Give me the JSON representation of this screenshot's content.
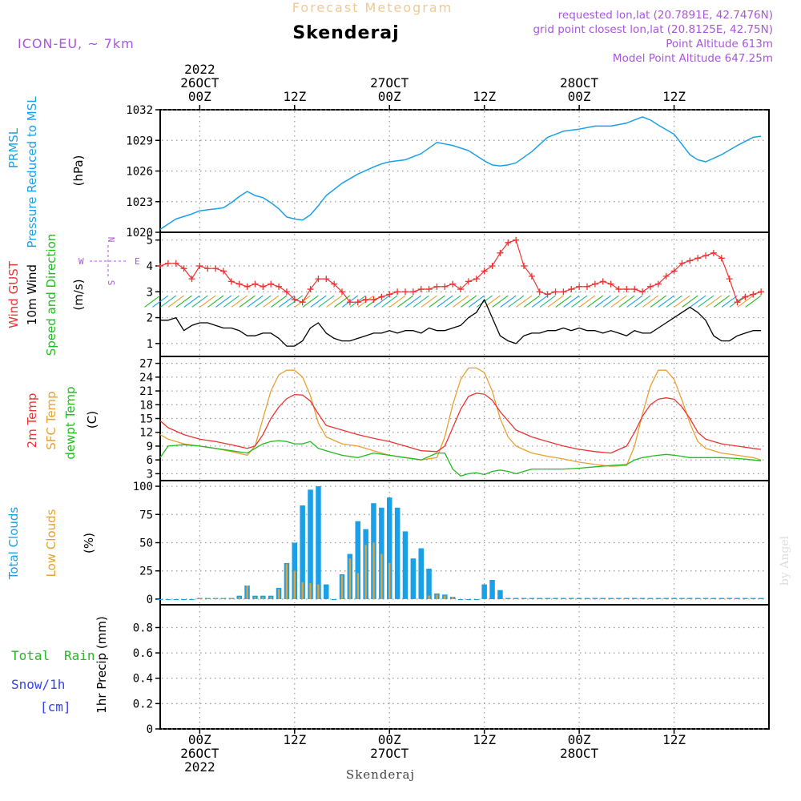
{
  "header": {
    "title": "Forecast Meteogram",
    "location": "Skenderaj",
    "model": "ICON-EU, ~ 7km",
    "requested": "requested lon,lat (20.7891E, 42.7476N)",
    "grid": "grid point closest lon,lat (20.8125E, 42.75N)",
    "point_alt": "Point Altitude 613m",
    "model_alt": "Model Point Altitude 647.25m",
    "watermark": "by Angel",
    "footer": "Skenderaj"
  },
  "time_axis": {
    "top_rows": [
      {
        "x": 0,
        "lines": [
          "2022",
          "26OCT",
          "00Z"
        ]
      },
      {
        "x": 12,
        "lines": [
          "12Z"
        ]
      },
      {
        "x": 24,
        "lines": [
          "27OCT",
          "00Z"
        ]
      },
      {
        "x": 36,
        "lines": [
          "12Z"
        ]
      },
      {
        "x": 48,
        "lines": [
          "28OCT",
          "00Z"
        ]
      },
      {
        "x": 60,
        "lines": [
          "12Z"
        ]
      }
    ],
    "bottom_rows": [
      {
        "x": 0,
        "lines": [
          "00Z",
          "26OCT",
          "2022"
        ]
      },
      {
        "x": 12,
        "lines": [
          "12Z"
        ]
      },
      {
        "x": 24,
        "lines": [
          "00Z",
          "27OCT"
        ]
      },
      {
        "x": 36,
        "lines": [
          "12Z"
        ]
      },
      {
        "x": 48,
        "lines": [
          "00Z",
          "28OCT"
        ]
      },
      {
        "x": 60,
        "lines": [
          "12Z"
        ]
      }
    ]
  },
  "panels": {
    "pressure": {
      "labels": [
        {
          "text": "PRMSL",
          "color": "#1aa0e6"
        },
        {
          "text": "Pressure Reduced to MSL",
          "color": "#1aa0e6"
        },
        {
          "text": "(hPa)",
          "color": "#000000"
        }
      ],
      "ticks": [
        "1020",
        "1023",
        "1026",
        "1029",
        "1032"
      ]
    },
    "wind": {
      "labels": [
        {
          "text": "Wind GUST",
          "color": "#ee3333"
        },
        {
          "text": "10m Wind",
          "color": "#000000"
        },
        {
          "text": "Speed and Direction",
          "color": "#22bb22"
        },
        {
          "text": "(m/s)",
          "color": "#000000"
        }
      ],
      "compass": {
        "n": "N",
        "s": "S",
        "w": "W",
        "e": "E",
        "color": "#aa55dd"
      },
      "ticks": [
        "1",
        "2",
        "3",
        "4",
        "5"
      ]
    },
    "temp": {
      "labels": [
        {
          "text": "2m Temp",
          "color": "#ee3333"
        },
        {
          "text": "SFC Temp",
          "color": "#e8a030"
        },
        {
          "text": "dewpt Temp",
          "color": "#22bb22"
        },
        {
          "text": "(C)",
          "color": "#000000"
        }
      ],
      "ticks": [
        "3",
        "6",
        "9",
        "12",
        "15",
        "18",
        "21",
        "24",
        "27"
      ]
    },
    "clouds": {
      "labels": [
        {
          "text": "Total Clouds",
          "color": "#1aa0e6"
        },
        {
          "text": "Low Clouds",
          "color": "#e8a030"
        },
        {
          "text": "(%)",
          "color": "#000000"
        }
      ],
      "ticks": [
        "0",
        "25",
        "50",
        "75",
        "100"
      ]
    },
    "precip": {
      "labels": [
        {
          "text": "Total",
          "color": "#22bb22"
        },
        {
          "text": "Rain",
          "color": "#22bb22"
        },
        {
          "text": "Snow/1h",
          "color": "#3344ee"
        },
        {
          "text": "[cm]",
          "color": "#3344ee"
        },
        {
          "text": "1hr Precip (mm)",
          "color": "#000000"
        }
      ],
      "ticks": [
        "0",
        "0.2",
        "0.4",
        "0.6",
        "0.8"
      ]
    }
  },
  "chart_data": {
    "type": "line",
    "x_unit": "hours from 2022-10-26 00Z",
    "xlim": [
      -5,
      72
    ],
    "colors": {
      "pressure": "#1aa0e6",
      "gust": "#ee3333",
      "wind": "#000000",
      "t2m": "#ee3333",
      "sfc": "#e8a030",
      "dew": "#22bb22",
      "total_cloud": "#1aa0e6",
      "low_cloud": "#e8a030"
    },
    "pressure": {
      "ylim": [
        1020,
        1032
      ],
      "x": [
        -5,
        -3,
        -1,
        0,
        1,
        2,
        3,
        4,
        5,
        6,
        7,
        8,
        9,
        10,
        11,
        12,
        13,
        14,
        15,
        16,
        18,
        20,
        22,
        23,
        24,
        26,
        28,
        30,
        32,
        34,
        36,
        37,
        38,
        39,
        40,
        42,
        44,
        46,
        48,
        50,
        51,
        52,
        54,
        56,
        57,
        58,
        60,
        62,
        63,
        64,
        66,
        68,
        70,
        71
      ],
      "values": [
        1020.3,
        1021.3,
        1021.8,
        1022.1,
        1022.2,
        1022.3,
        1022.4,
        1022.9,
        1023.5,
        1024.0,
        1023.6,
        1023.4,
        1022.9,
        1022.3,
        1021.5,
        1021.3,
        1021.2,
        1021.7,
        1022.6,
        1023.6,
        1024.8,
        1025.7,
        1026.4,
        1026.7,
        1026.9,
        1027.1,
        1027.7,
        1028.8,
        1028.5,
        1028.0,
        1027.0,
        1026.6,
        1026.5,
        1026.6,
        1026.8,
        1027.9,
        1029.3,
        1029.9,
        1030.1,
        1030.4,
        1030.4,
        1030.4,
        1030.7,
        1031.3,
        1031.0,
        1030.5,
        1029.6,
        1027.6,
        1027.1,
        1026.9,
        1027.6,
        1028.5,
        1029.3,
        1029.4
      ]
    },
    "wind_gust": {
      "ylim": [
        0.5,
        5.3
      ],
      "x": [
        -5,
        -4,
        -3,
        -2,
        -1,
        0,
        1,
        2,
        3,
        4,
        5,
        6,
        7,
        8,
        9,
        10,
        11,
        12,
        13,
        14,
        15,
        16,
        17,
        18,
        19,
        20,
        21,
        22,
        23,
        24,
        25,
        26,
        27,
        28,
        29,
        30,
        31,
        32,
        33,
        34,
        35,
        36,
        37,
        38,
        39,
        40,
        41,
        42,
        43,
        44,
        45,
        46,
        47,
        48,
        49,
        50,
        51,
        52,
        53,
        54,
        55,
        56,
        57,
        58,
        59,
        60,
        61,
        62,
        63,
        64,
        65,
        66,
        67,
        68,
        69,
        70,
        71
      ],
      "values": [
        4.0,
        4.1,
        4.1,
        3.9,
        3.5,
        4.0,
        3.9,
        3.9,
        3.8,
        3.4,
        3.3,
        3.2,
        3.3,
        3.2,
        3.3,
        3.2,
        3.0,
        2.7,
        2.6,
        3.1,
        3.5,
        3.5,
        3.3,
        3.0,
        2.6,
        2.6,
        2.7,
        2.7,
        2.8,
        2.9,
        3.0,
        3.0,
        3.0,
        3.1,
        3.1,
        3.2,
        3.2,
        3.3,
        3.1,
        3.4,
        3.5,
        3.8,
        4.0,
        4.5,
        4.9,
        5.0,
        4.0,
        3.6,
        3.0,
        2.9,
        3.0,
        3.0,
        3.1,
        3.2,
        3.2,
        3.3,
        3.4,
        3.3,
        3.1,
        3.1,
        3.1,
        3.0,
        3.2,
        3.3,
        3.6,
        3.8,
        4.1,
        4.2,
        4.3,
        4.4,
        4.5,
        4.3,
        3.5,
        2.6,
        2.8,
        2.9,
        3.0
      ]
    },
    "wind_speed": {
      "x": [
        -5,
        -4,
        -3,
        -2,
        -1,
        0,
        1,
        2,
        3,
        4,
        5,
        6,
        7,
        8,
        9,
        10,
        11,
        12,
        13,
        14,
        15,
        16,
        17,
        18,
        19,
        20,
        21,
        22,
        23,
        24,
        25,
        26,
        27,
        28,
        29,
        30,
        31,
        32,
        33,
        34,
        35,
        36,
        37,
        38,
        39,
        40,
        41,
        42,
        43,
        44,
        45,
        46,
        47,
        48,
        49,
        50,
        51,
        52,
        53,
        54,
        55,
        56,
        57,
        58,
        59,
        60,
        61,
        62,
        63,
        64,
        65,
        66,
        67,
        68,
        69,
        70,
        71
      ],
      "values": [
        1.9,
        1.9,
        2.0,
        1.5,
        1.7,
        1.8,
        1.8,
        1.7,
        1.6,
        1.6,
        1.5,
        1.3,
        1.3,
        1.4,
        1.4,
        1.2,
        0.9,
        0.9,
        1.1,
        1.6,
        1.8,
        1.4,
        1.2,
        1.1,
        1.1,
        1.2,
        1.3,
        1.4,
        1.4,
        1.5,
        1.4,
        1.5,
        1.5,
        1.4,
        1.6,
        1.5,
        1.5,
        1.6,
        1.7,
        2.0,
        2.2,
        2.7,
        2.0,
        1.3,
        1.1,
        1.0,
        1.3,
        1.4,
        1.4,
        1.5,
        1.5,
        1.6,
        1.5,
        1.6,
        1.5,
        1.5,
        1.4,
        1.5,
        1.4,
        1.3,
        1.5,
        1.4,
        1.4,
        1.6,
        1.8,
        2.0,
        2.2,
        2.4,
        2.2,
        1.9,
        1.3,
        1.1,
        1.1,
        1.3,
        1.4,
        1.5,
        1.5
      ]
    },
    "temperature": {
      "ylim": [
        1.5,
        28.5
      ],
      "x": [
        -5,
        -4,
        -2,
        0,
        2,
        4,
        6,
        7,
        8,
        9,
        10,
        11,
        12,
        13,
        14,
        15,
        16,
        18,
        20,
        22,
        24,
        26,
        28,
        30,
        31,
        32,
        33,
        34,
        35,
        36,
        37,
        38,
        39,
        40,
        42,
        44,
        46,
        48,
        50,
        52,
        54,
        55,
        56,
        57,
        58,
        59,
        60,
        61,
        62,
        63,
        64,
        66,
        68,
        70,
        71
      ],
      "t2m": [
        14.5,
        13.0,
        11.5,
        10.5,
        10.0,
        9.3,
        8.5,
        9.0,
        11.5,
        15.0,
        17.5,
        19.3,
        20.2,
        20.1,
        18.8,
        16.0,
        13.5,
        12.5,
        11.5,
        10.7,
        10.0,
        9.0,
        8.0,
        7.8,
        9.0,
        13.0,
        17.0,
        19.8,
        20.5,
        20.3,
        19.0,
        16.5,
        14.5,
        12.5,
        11.0,
        10.0,
        9.0,
        8.3,
        7.8,
        7.5,
        9.0,
        12.0,
        15.5,
        18.0,
        19.2,
        19.5,
        19.2,
        17.5,
        15.0,
        12.0,
        10.5,
        9.5,
        9.0,
        8.5,
        8.3
      ],
      "sfc": [
        11.5,
        10.5,
        9.5,
        9.0,
        8.5,
        7.8,
        7.0,
        9.0,
        15.0,
        21.0,
        24.5,
        25.5,
        25.5,
        24.0,
        20.0,
        14.0,
        11.0,
        9.5,
        9.0,
        8.0,
        7.0,
        6.5,
        6.0,
        6.5,
        11.0,
        18.0,
        23.5,
        26.0,
        26.0,
        25.0,
        21.0,
        15.0,
        11.0,
        9.0,
        7.5,
        6.8,
        6.2,
        5.5,
        5.0,
        4.6,
        4.8,
        9.0,
        16.0,
        22.0,
        25.5,
        25.5,
        23.5,
        19.0,
        14.0,
        10.0,
        8.5,
        7.5,
        7.0,
        6.5,
        6.0
      ],
      "dew": [
        6.5,
        9.0,
        9.3,
        9.0,
        8.5,
        8.0,
        7.5,
        8.5,
        9.5,
        10.0,
        10.2,
        10.0,
        9.5,
        9.5,
        10.0,
        8.5,
        8.0,
        7.0,
        6.5,
        7.5,
        7.0,
        6.5,
        6.0,
        7.5,
        7.5,
        4.0,
        2.5,
        3.0,
        3.2,
        2.8,
        3.5,
        3.8,
        3.5,
        3.0,
        4.0,
        4.0,
        4.0,
        4.2,
        4.5,
        4.8,
        5.0,
        6.0,
        6.5,
        6.8,
        7.0,
        7.2,
        7.0,
        6.8,
        6.5,
        6.5,
        6.5,
        6.5,
        6.3,
        6.0,
        5.8
      ]
    },
    "clouds": {
      "ylim": [
        -5,
        105
      ],
      "x": [
        -5,
        -4,
        -3,
        -2,
        -1,
        0,
        1,
        2,
        3,
        4,
        5,
        6,
        7,
        8,
        9,
        10,
        11,
        12,
        13,
        14,
        15,
        16,
        17,
        18,
        19,
        20,
        21,
        22,
        23,
        24,
        25,
        26,
        27,
        28,
        29,
        30,
        31,
        32,
        33,
        34,
        35,
        36,
        37,
        38,
        39,
        40,
        41,
        42,
        43,
        44,
        45,
        46,
        47,
        48,
        49,
        50,
        51,
        52,
        53,
        54,
        55,
        56,
        57,
        58,
        59,
        60,
        61,
        62,
        63,
        64,
        65,
        66,
        67,
        68,
        69,
        70,
        71
      ],
      "total": [
        0,
        0,
        0,
        0,
        0,
        1,
        1,
        1,
        1,
        1,
        3,
        12,
        3,
        3,
        3,
        10,
        32,
        50,
        83,
        97,
        100,
        13,
        0,
        22,
        40,
        69,
        62,
        85,
        81,
        90,
        81,
        60,
        36,
        45,
        27,
        5,
        4,
        2,
        0,
        0,
        0,
        13,
        17,
        8,
        1,
        1,
        1,
        1,
        1,
        1,
        1,
        1,
        1,
        1,
        1,
        1,
        1,
        1,
        1,
        1,
        1,
        1,
        1,
        1,
        1,
        1,
        1,
        1,
        1,
        1,
        1,
        1,
        1,
        1,
        1,
        1,
        1
      ],
      "low": [
        0,
        0,
        0,
        0,
        0,
        1,
        1,
        1,
        1,
        1,
        2,
        12,
        2,
        2,
        2,
        9,
        31,
        25,
        15,
        14,
        13,
        0,
        0,
        21,
        36,
        23,
        48,
        50,
        40,
        32,
        0,
        0,
        0,
        0,
        3,
        4,
        3,
        2,
        0,
        0,
        0,
        0,
        0,
        0,
        0,
        0,
        0,
        0,
        0,
        0,
        0,
        0,
        0,
        0,
        0,
        0,
        0,
        0,
        0,
        0,
        0,
        0,
        0,
        0,
        0,
        0,
        0,
        0,
        0,
        0,
        0,
        0,
        0,
        0,
        0,
        0,
        0
      ]
    },
    "precip": {
      "ylim": [
        0,
        0.98
      ],
      "total": [],
      "snow": []
    }
  }
}
